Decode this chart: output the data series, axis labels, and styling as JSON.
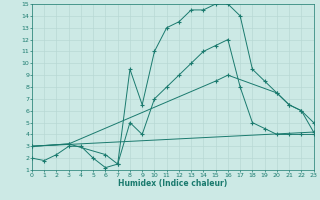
{
  "xlabel": "Humidex (Indice chaleur)",
  "xlim": [
    0,
    23
  ],
  "ylim": [
    1,
    15
  ],
  "xticks": [
    0,
    1,
    2,
    3,
    4,
    5,
    6,
    7,
    8,
    9,
    10,
    11,
    12,
    13,
    14,
    15,
    16,
    17,
    18,
    19,
    20,
    21,
    22,
    23
  ],
  "yticks": [
    1,
    2,
    3,
    4,
    5,
    6,
    7,
    8,
    9,
    10,
    11,
    12,
    13,
    14,
    15
  ],
  "bg_color": "#cce9e5",
  "line_color": "#1a7a6e",
  "grid_color": "#b8d8d4",
  "line1_x": [
    0,
    1,
    2,
    3,
    4,
    5,
    6,
    7,
    8,
    9,
    10,
    11,
    12,
    13,
    14,
    15,
    16,
    17,
    18,
    19,
    20,
    21,
    22,
    23
  ],
  "line1_y": [
    2,
    1.8,
    2.3,
    3,
    3,
    2,
    1.2,
    1.5,
    9.5,
    6.5,
    11,
    13,
    13.5,
    14.5,
    14.5,
    15,
    15,
    14,
    9.5,
    8.5,
    7.5,
    6.5,
    6,
    4.2
  ],
  "line2_x": [
    0,
    3,
    6,
    7,
    8,
    9,
    10,
    11,
    12,
    13,
    14,
    15,
    16,
    17,
    18,
    19,
    20,
    21,
    22,
    23
  ],
  "line2_y": [
    3,
    3.2,
    2.3,
    1.5,
    5,
    4,
    7,
    8,
    9,
    10,
    11,
    11.5,
    12,
    8,
    5,
    4.5,
    4,
    4,
    4,
    4
  ],
  "line3_x": [
    0,
    23
  ],
  "line3_y": [
    3,
    4.2
  ],
  "line4_x": [
    0,
    3,
    15,
    16,
    20,
    21,
    22,
    23
  ],
  "line4_y": [
    3,
    3.2,
    8.5,
    9,
    7.5,
    6.5,
    6,
    5
  ]
}
